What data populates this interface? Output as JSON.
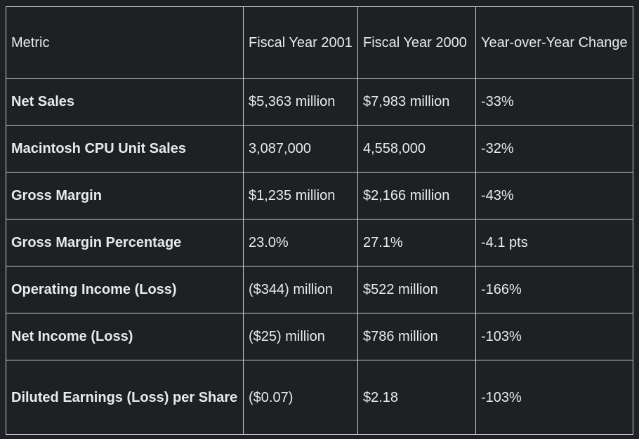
{
  "table": {
    "headers": [
      "Metric",
      "Fiscal Year 2001",
      "Fiscal Year 2000",
      "Year-over-Year Change"
    ],
    "rows": [
      [
        "Net Sales",
        "$5,363 million",
        "$7,983 million",
        "-33%"
      ],
      [
        "Macintosh CPU Unit Sales",
        "3,087,000",
        "4,558,000",
        "-32%"
      ],
      [
        "Gross Margin",
        "$1,235 million",
        "$2,166 million",
        "-43%"
      ],
      [
        "Gross Margin Percentage",
        "23.0%",
        "27.1%",
        "-4.1 pts"
      ],
      [
        "Operating Income (Loss)",
        "($344) million",
        "$522 million",
        "-166%"
      ],
      [
        "Net Income (Loss)",
        "($25) million",
        "$786 million",
        "-103%"
      ],
      [
        "Diluted Earnings (Loss) per Share",
        "($0.07)",
        "$2.18",
        "-103%"
      ]
    ]
  }
}
